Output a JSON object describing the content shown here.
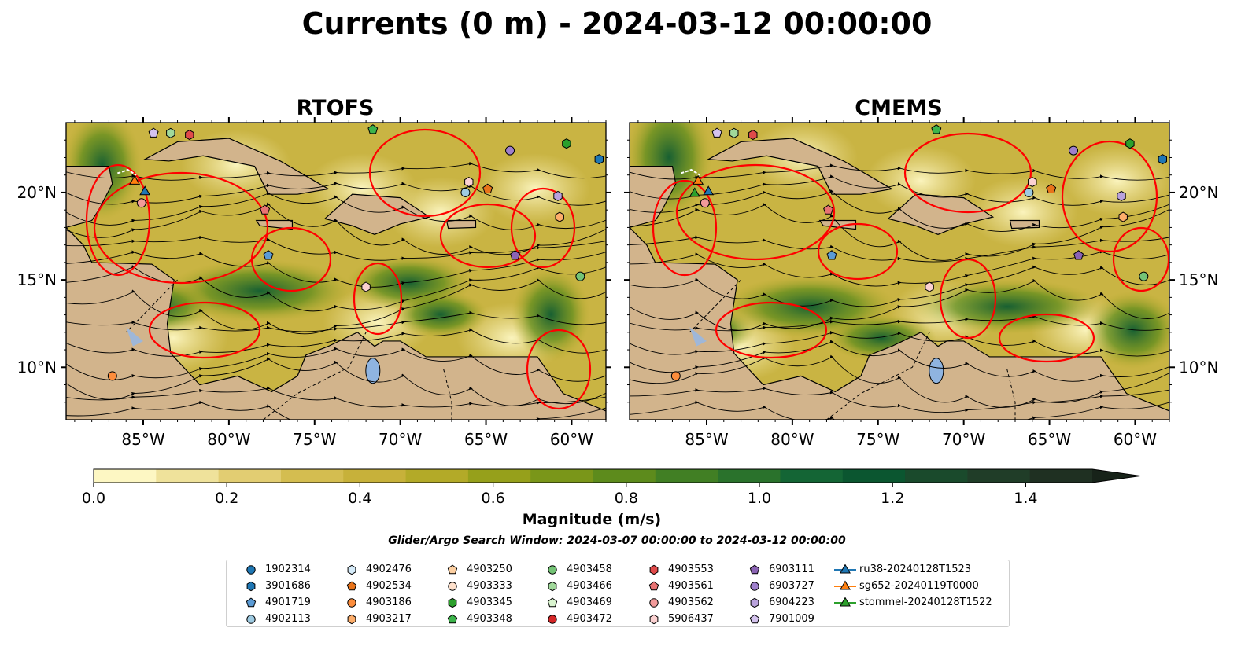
{
  "figure": {
    "title": "Currents (0 m) - 2024-03-12 00:00:00",
    "colorbar_label": "Magnitude (m/s)",
    "search_window": "Glider/Argo Search Window: 2024-03-07 00:00:00 to 2024-03-12 00:00:00"
  },
  "chart_data": [
    {
      "type": "heatmap",
      "title": "RTOFS",
      "xlabel": "",
      "ylabel": "",
      "xlim": [
        -89.5,
        -58
      ],
      "ylim": [
        7,
        24
      ],
      "x_ticks": [
        "85°W",
        "80°W",
        "75°W",
        "70°W",
        "65°W",
        "60°W"
      ],
      "y_ticks": [
        "20°N",
        "15°N",
        "10°N"
      ],
      "y_tick_side": "left",
      "overlays": [
        "streamlines",
        "eddy contours"
      ]
    },
    {
      "type": "heatmap",
      "title": "CMEMS",
      "xlabel": "",
      "ylabel": "",
      "xlim": [
        -89.5,
        -58
      ],
      "ylim": [
        7,
        24
      ],
      "x_ticks": [
        "85°W",
        "80°W",
        "75°W",
        "70°W",
        "65°W",
        "60°W"
      ],
      "y_ticks": [
        "20°N",
        "15°N",
        "10°N"
      ],
      "y_tick_side": "right",
      "overlays": [
        "streamlines",
        "eddy contours"
      ]
    }
  ],
  "colorbar": {
    "min": 0.0,
    "max": 1.5,
    "extend": "max",
    "tick_labels": [
      "0.0",
      "0.2",
      "0.4",
      "0.6",
      "0.8",
      "1.0",
      "1.2",
      "1.4"
    ],
    "tick_values": [
      0.0,
      0.2,
      0.4,
      0.6,
      0.8,
      1.0,
      1.2,
      1.4
    ],
    "colors": [
      "#fdf7c3",
      "#efe29b",
      "#e2cd72",
      "#d4bd50",
      "#c7b13a",
      "#b3aa28",
      "#96a01b",
      "#7a9619",
      "#5d8b1c",
      "#417f24",
      "#2a722c",
      "#146535",
      "#0b5630",
      "#1a4a2c",
      "#203d28",
      "#1f3022",
      "#172319"
    ]
  },
  "markers": [
    {
      "label": "1902314",
      "shape": "circle",
      "color": "#1f77b4",
      "lon": null,
      "lat": null
    },
    {
      "label": "3901686",
      "shape": "hexagon",
      "color": "#1f77b4"
    },
    {
      "label": "4901719",
      "shape": "pentagon",
      "color": "#5b9bd5"
    },
    {
      "label": "4902113",
      "shape": "circle",
      "color": "#9ecae1"
    },
    {
      "label": "4902476",
      "shape": "hexagon",
      "color": "#d6ecfa"
    },
    {
      "label": "4902534",
      "shape": "pentagon",
      "color": "#e8731a"
    },
    {
      "label": "4903186",
      "shape": "circle",
      "color": "#fd8d3c"
    },
    {
      "label": "4903217",
      "shape": "hexagon",
      "color": "#fdae6b"
    },
    {
      "label": "4903250",
      "shape": "pentagon",
      "color": "#fdd0a2"
    },
    {
      "label": "4903333",
      "shape": "circle",
      "color": "#fee0cb"
    },
    {
      "label": "4903345",
      "shape": "hexagon",
      "color": "#2ca02c"
    },
    {
      "label": "4903348",
      "shape": "pentagon",
      "color": "#3cb44b"
    },
    {
      "label": "4903458",
      "shape": "circle",
      "color": "#74c476"
    },
    {
      "label": "4903466",
      "shape": "hexagon",
      "color": "#a1d99b"
    },
    {
      "label": "4903469",
      "shape": "pentagon",
      "color": "#d9f4cf"
    },
    {
      "label": "4903472",
      "shape": "circle",
      "color": "#d62728"
    },
    {
      "label": "4903553",
      "shape": "hexagon",
      "color": "#e04a4a"
    },
    {
      "label": "4903561",
      "shape": "pentagon",
      "color": "#e87373"
    },
    {
      "label": "4903562",
      "shape": "circle",
      "color": "#f29a9a"
    },
    {
      "label": "5906437",
      "shape": "hexagon",
      "color": "#fbd1d1"
    },
    {
      "label": "6903111",
      "shape": "pentagon",
      "color": "#8b63b4"
    },
    {
      "label": "6903727",
      "shape": "circle",
      "color": "#9f7fcc"
    },
    {
      "label": "6904223",
      "shape": "hexagon",
      "color": "#b9a2dc"
    },
    {
      "label": "7901009",
      "shape": "pentagon",
      "color": "#d4c3ee"
    }
  ],
  "tracks": [
    {
      "label": "ru38-20240128T1523",
      "color": "#1f77b4"
    },
    {
      "label": "sg652-20240119T0000",
      "color": "#ff7f0e"
    },
    {
      "label": "stommel-20240128T1522",
      "color": "#2ca02c"
    }
  ]
}
